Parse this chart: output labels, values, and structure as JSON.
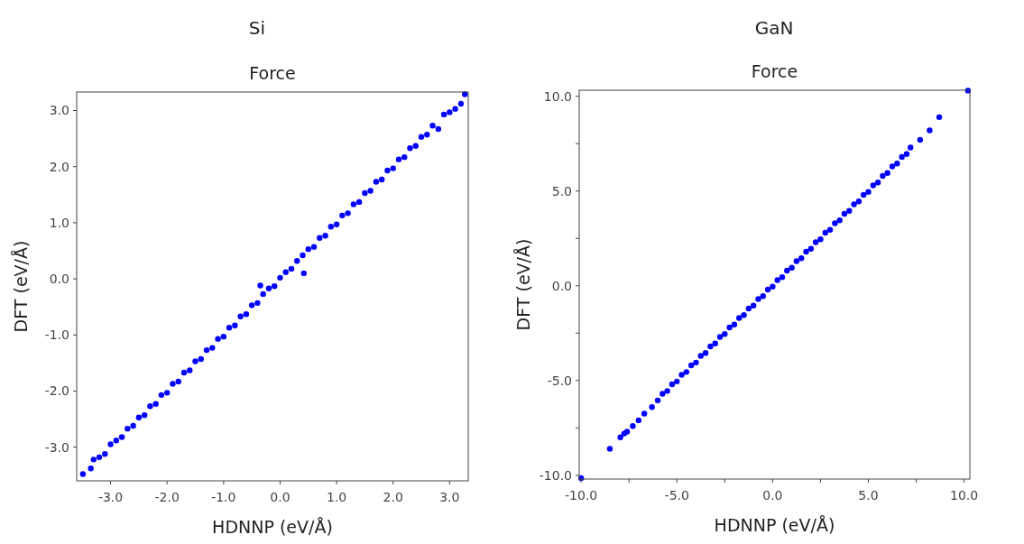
{
  "chart_data": [
    {
      "type": "scatter",
      "title": "Si",
      "subtitle": "Force",
      "xlabel": "HDNNP (eV/Å)",
      "ylabel": "DFT (eV/Å)",
      "marker": "circle",
      "grid": false,
      "xlim": [
        -3.6,
        3.33
      ],
      "ylim": [
        -3.6,
        3.33
      ],
      "xticks": [
        {
          "value": -3,
          "label": "-3.0"
        },
        {
          "value": -2,
          "label": "-2.0"
        },
        {
          "value": -1,
          "label": "-1.0"
        },
        {
          "value": 0,
          "label": "0.0"
        },
        {
          "value": 1,
          "label": "1.0"
        },
        {
          "value": 2,
          "label": "2.0"
        },
        {
          "value": 3,
          "label": "3.0"
        }
      ],
      "yticks": [
        {
          "value": -3,
          "label": "-3.0"
        },
        {
          "value": -2,
          "label": "-2.0"
        },
        {
          "value": -1,
          "label": "-1.0"
        },
        {
          "value": 0,
          "label": "0.0"
        },
        {
          "value": 1,
          "label": "1.0"
        },
        {
          "value": 2,
          "label": "2.0"
        },
        {
          "value": 3,
          "label": "3.0"
        }
      ],
      "series": [
        {
          "color": "#0000ff",
          "x": [
            -3.49,
            -3.35,
            -3.3,
            -3.2,
            -3.1,
            -3.0,
            -2.9,
            -2.8,
            -2.7,
            -2.6,
            -2.5,
            -2.4,
            -2.3,
            -2.2,
            -2.1,
            -2.0,
            -1.9,
            -1.8,
            -1.7,
            -1.6,
            -1.5,
            -1.4,
            -1.3,
            -1.2,
            -1.1,
            -1.0,
            -0.9,
            -0.8,
            -0.7,
            -0.6,
            -0.5,
            -0.4,
            -0.35,
            -0.3,
            -0.2,
            -0.1,
            0.0,
            0.1,
            0.2,
            0.3,
            0.42,
            0.4,
            0.5,
            0.6,
            0.7,
            0.8,
            0.9,
            1.0,
            1.1,
            1.2,
            1.3,
            1.4,
            1.5,
            1.6,
            1.7,
            1.8,
            1.9,
            2.0,
            2.1,
            2.2,
            2.3,
            2.4,
            2.5,
            2.6,
            2.7,
            2.8,
            2.9,
            3.0,
            3.1,
            3.2,
            3.27
          ],
          "values": [
            -3.48,
            -3.38,
            -3.22,
            -3.18,
            -3.12,
            -2.95,
            -2.88,
            -2.82,
            -2.67,
            -2.62,
            -2.47,
            -2.43,
            -2.27,
            -2.23,
            -2.07,
            -2.03,
            -1.87,
            -1.83,
            -1.67,
            -1.63,
            -1.47,
            -1.43,
            -1.27,
            -1.23,
            -1.07,
            -1.03,
            -0.87,
            -0.83,
            -0.67,
            -0.63,
            -0.47,
            -0.43,
            -0.12,
            -0.27,
            -0.17,
            -0.13,
            0.02,
            0.12,
            0.18,
            0.32,
            0.1,
            0.42,
            0.53,
            0.57,
            0.73,
            0.77,
            0.93,
            0.97,
            1.13,
            1.17,
            1.33,
            1.37,
            1.53,
            1.57,
            1.73,
            1.77,
            1.93,
            1.97,
            2.13,
            2.17,
            2.33,
            2.37,
            2.53,
            2.57,
            2.73,
            2.67,
            2.93,
            2.97,
            3.03,
            3.12,
            3.29
          ]
        }
      ]
    },
    {
      "type": "scatter",
      "title": "GaN",
      "subtitle": "Force",
      "xlabel": "HDNNP (eV/Å)",
      "ylabel": "DFT (eV/Å)",
      "marker": "circle",
      "grid": false,
      "xlim": [
        -10.1,
        10.3
      ],
      "ylim": [
        -10.2,
        10.32
      ],
      "xticks": [
        {
          "value": -10,
          "label": "-10.0"
        },
        {
          "value": -7.5,
          "label": null
        },
        {
          "value": -5,
          "label": "-5.0"
        },
        {
          "value": -2.5,
          "label": null
        },
        {
          "value": 0,
          "label": "0.0"
        },
        {
          "value": 2.5,
          "label": null
        },
        {
          "value": 5,
          "label": "5.0"
        },
        {
          "value": 7.5,
          "label": null
        },
        {
          "value": 10,
          "label": "10.0"
        }
      ],
      "yticks": [
        {
          "value": -10,
          "label": "-10.0"
        },
        {
          "value": -7.5,
          "label": null
        },
        {
          "value": -5,
          "label": "-5.0"
        },
        {
          "value": -2.5,
          "label": null
        },
        {
          "value": 0,
          "label": "0.0"
        },
        {
          "value": 2.5,
          "label": null
        },
        {
          "value": 5,
          "label": "5.0"
        },
        {
          "value": 7.5,
          "label": null
        },
        {
          "value": 10,
          "label": "10.0"
        }
      ],
      "series": [
        {
          "color": "#0000ff",
          "x": [
            -10.0,
            -8.5,
            -7.95,
            -7.75,
            -7.6,
            -7.3,
            -7.0,
            -6.7,
            -6.3,
            -6.0,
            -5.75,
            -5.5,
            -5.25,
            -5.0,
            -4.75,
            -4.5,
            -4.25,
            -4.0,
            -3.75,
            -3.5,
            -3.25,
            -3.0,
            -2.75,
            -2.5,
            -2.25,
            -2.0,
            -1.75,
            -1.5,
            -1.25,
            -1.0,
            -0.75,
            -0.5,
            -0.25,
            0.0,
            0.25,
            0.5,
            0.75,
            1.0,
            1.25,
            1.5,
            1.75,
            2.0,
            2.25,
            2.5,
            2.75,
            3.0,
            3.25,
            3.5,
            3.75,
            4.0,
            4.25,
            4.5,
            4.75,
            5.0,
            5.25,
            5.5,
            5.75,
            6.0,
            6.25,
            6.5,
            6.75,
            7.0,
            7.2,
            7.7,
            8.2,
            8.7,
            10.2
          ],
          "values": [
            -10.15,
            -8.6,
            -8.0,
            -7.8,
            -7.7,
            -7.4,
            -7.1,
            -6.75,
            -6.4,
            -6.05,
            -5.7,
            -5.55,
            -5.2,
            -5.05,
            -4.7,
            -4.55,
            -4.2,
            -4.05,
            -3.7,
            -3.55,
            -3.2,
            -3.05,
            -2.7,
            -2.55,
            -2.2,
            -2.05,
            -1.7,
            -1.55,
            -1.2,
            -1.05,
            -0.7,
            -0.55,
            -0.2,
            -0.05,
            0.3,
            0.45,
            0.8,
            0.95,
            1.3,
            1.45,
            1.8,
            1.95,
            2.3,
            2.45,
            2.8,
            2.95,
            3.3,
            3.45,
            3.8,
            3.95,
            4.3,
            4.45,
            4.8,
            4.95,
            5.3,
            5.45,
            5.8,
            5.95,
            6.3,
            6.45,
            6.8,
            6.95,
            7.3,
            7.7,
            8.2,
            8.9,
            10.3
          ]
        }
      ]
    }
  ]
}
